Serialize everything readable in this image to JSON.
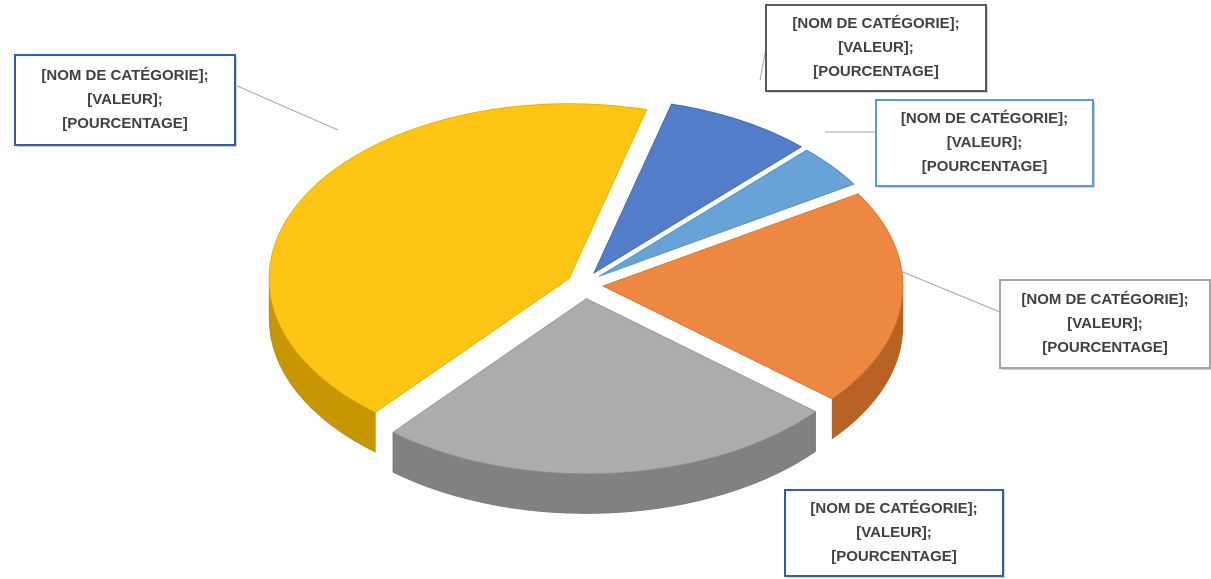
{
  "chart_data": {
    "type": "pie",
    "values": [
      8,
      4,
      20,
      25,
      43
    ],
    "colors": [
      "#4472c4",
      "#5b9bd5",
      "#ed7d31",
      "#a5a5a5",
      "#ffc000"
    ],
    "data_labels": [
      [
        "[NOM DE CATÉGORIE];",
        "[VALEUR];",
        "[POURCENTAGE]"
      ],
      [
        "[NOM DE CATÉGORIE];",
        "[VALEUR];",
        "[POURCENTAGE]"
      ],
      [
        "[NOM DE CATÉGORIE];",
        "[VALEUR];",
        "[POURCENTAGE]"
      ],
      [
        "[NOM DE CATÉGORIE];",
        "[VALEUR];",
        "[POURCENTAGE]"
      ],
      [
        "[NOM DE CATÉGORIE];",
        "[VALEUR];",
        "[POURCENTAGE]"
      ]
    ],
    "label_border_colors": [
      "#595959",
      "#5b9bd5",
      "#a5a5a5",
      "#2e5fa8",
      "#2e5fa8"
    ]
  }
}
